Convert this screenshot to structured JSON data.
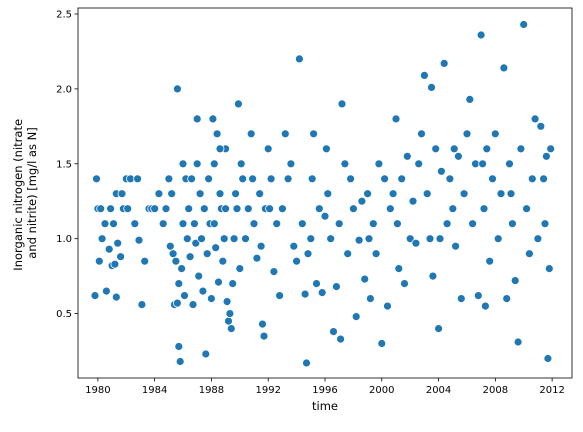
{
  "chart_data": {
    "type": "scatter",
    "title": "",
    "xlabel": "time",
    "ylabel": [
      "Inorganic nitrogen (nitrate",
      "and nitrite) [mg/l as N]"
    ],
    "xlim": [
      1978.6,
      2013.4
    ],
    "ylim": [
      0.07,
      2.54
    ],
    "xticks": [
      1980,
      1984,
      1988,
      1992,
      1996,
      2000,
      2004,
      2008,
      2012
    ],
    "yticks": [
      0.5,
      1.0,
      1.5,
      2.0,
      2.5
    ],
    "ytick_labels": [
      "0.5",
      "1.0",
      "1.5",
      "2.0",
      "2.5"
    ],
    "grid": false,
    "marker_color": "#1f77b4",
    "marker_edge_color": "#ffffff",
    "points": [
      [
        1979.8,
        0.62
      ],
      [
        1979.9,
        1.4
      ],
      [
        1980.0,
        1.2
      ],
      [
        1980.1,
        0.85
      ],
      [
        1980.2,
        1.2
      ],
      [
        1980.3,
        1.0
      ],
      [
        1980.5,
        1.1
      ],
      [
        1980.6,
        0.65
      ],
      [
        1980.8,
        0.93
      ],
      [
        1980.9,
        1.2
      ],
      [
        1981.0,
        0.82
      ],
      [
        1981.1,
        1.1
      ],
      [
        1981.2,
        0.83
      ],
      [
        1981.3,
        0.61
      ],
      [
        1981.3,
        1.3
      ],
      [
        1981.4,
        0.97
      ],
      [
        1981.6,
        0.88
      ],
      [
        1981.7,
        1.3
      ],
      [
        1981.8,
        1.2
      ],
      [
        1982.0,
        1.4
      ],
      [
        1982.1,
        1.2
      ],
      [
        1982.3,
        1.4
      ],
      [
        1982.6,
        1.1
      ],
      [
        1982.8,
        1.4
      ],
      [
        1982.9,
        0.99
      ],
      [
        1983.1,
        0.56
      ],
      [
        1983.3,
        0.85
      ],
      [
        1983.6,
        1.2
      ],
      [
        1983.8,
        1.2
      ],
      [
        1984.0,
        1.2
      ],
      [
        1984.3,
        1.3
      ],
      [
        1984.6,
        1.1
      ],
      [
        1984.8,
        1.2
      ],
      [
        1985.0,
        1.4
      ],
      [
        1985.1,
        0.95
      ],
      [
        1985.2,
        1.3
      ],
      [
        1985.3,
        0.9
      ],
      [
        1985.4,
        0.56
      ],
      [
        1985.5,
        0.85
      ],
      [
        1985.6,
        2.0
      ],
      [
        1985.7,
        0.28
      ],
      [
        1985.8,
        0.18
      ],
      [
        1985.6,
        0.57
      ],
      [
        1985.7,
        0.7
      ],
      [
        1985.9,
        0.8
      ],
      [
        1986.0,
        1.1
      ],
      [
        1986.0,
        1.5
      ],
      [
        1986.1,
        0.62
      ],
      [
        1986.2,
        1.4
      ],
      [
        1986.3,
        1.0
      ],
      [
        1986.4,
        1.2
      ],
      [
        1986.5,
        0.88
      ],
      [
        1986.6,
        1.4
      ],
      [
        1986.7,
        0.56
      ],
      [
        1986.8,
        1.1
      ],
      [
        1986.9,
        0.97
      ],
      [
        1987.0,
        1.8
      ],
      [
        1987.0,
        1.5
      ],
      [
        1987.1,
        0.75
      ],
      [
        1987.2,
        1.3
      ],
      [
        1987.3,
        1.0
      ],
      [
        1987.4,
        0.65
      ],
      [
        1987.5,
        1.2
      ],
      [
        1987.6,
        0.23
      ],
      [
        1987.7,
        0.9
      ],
      [
        1987.8,
        1.4
      ],
      [
        1987.9,
        1.1
      ],
      [
        1988.0,
        0.6
      ],
      [
        1988.1,
        1.8
      ],
      [
        1988.2,
        1.5
      ],
      [
        1988.3,
        0.94
      ],
      [
        1988.4,
        1.7
      ],
      [
        1988.5,
        0.71
      ],
      [
        1988.6,
        1.3
      ],
      [
        1988.7,
        1.2
      ],
      [
        1988.8,
        0.85
      ],
      [
        1988.9,
        1.0
      ],
      [
        1989.0,
        1.6
      ],
      [
        1989.1,
        0.58
      ],
      [
        1989.2,
        0.45
      ],
      [
        1989.3,
        0.5
      ],
      [
        1989.4,
        0.4
      ],
      [
        1989.5,
        0.7
      ],
      [
        1989.6,
        1.0
      ],
      [
        1989.7,
        1.3
      ],
      [
        1989.8,
        1.2
      ],
      [
        1989.9,
        1.9
      ],
      [
        1990.0,
        0.8
      ],
      [
        1990.2,
        1.4
      ],
      [
        1990.4,
        1.0
      ],
      [
        1990.6,
        1.2
      ],
      [
        1990.8,
        1.7
      ],
      [
        1991.0,
        1.1
      ],
      [
        1991.2,
        0.87
      ],
      [
        1991.4,
        1.3
      ],
      [
        1991.5,
        0.95
      ],
      [
        1991.6,
        0.43
      ],
      [
        1991.7,
        0.35
      ],
      [
        1991.8,
        1.2
      ],
      [
        1992.0,
        1.6
      ],
      [
        1992.2,
        1.4
      ],
      [
        1992.4,
        0.78
      ],
      [
        1992.6,
        1.1
      ],
      [
        1992.8,
        0.62
      ],
      [
        1993.0,
        1.2
      ],
      [
        1993.2,
        1.7
      ],
      [
        1993.4,
        1.4
      ],
      [
        1993.6,
        1.5
      ],
      [
        1993.8,
        0.95
      ],
      [
        1994.0,
        0.85
      ],
      [
        1994.2,
        2.2
      ],
      [
        1994.4,
        1.1
      ],
      [
        1994.6,
        0.63
      ],
      [
        1994.7,
        0.17
      ],
      [
        1994.8,
        0.9
      ],
      [
        1995.0,
        1.0
      ],
      [
        1995.2,
        1.7
      ],
      [
        1995.4,
        0.7
      ],
      [
        1995.6,
        1.2
      ],
      [
        1995.8,
        0.64
      ],
      [
        1996.0,
        1.15
      ],
      [
        1996.2,
        1.3
      ],
      [
        1996.4,
        1.0
      ],
      [
        1996.6,
        0.38
      ],
      [
        1996.8,
        0.68
      ],
      [
        1997.0,
        1.1
      ],
      [
        1997.1,
        0.33
      ],
      [
        1997.2,
        1.9
      ],
      [
        1997.4,
        1.5
      ],
      [
        1997.6,
        0.9
      ],
      [
        1997.8,
        1.4
      ],
      [
        1998.0,
        1.2
      ],
      [
        1998.2,
        0.48
      ],
      [
        1998.4,
        0.99
      ],
      [
        1998.6,
        1.25
      ],
      [
        1998.8,
        0.73
      ],
      [
        1999.0,
        1.3
      ],
      [
        1999.2,
        0.6
      ],
      [
        1999.4,
        1.1
      ],
      [
        1999.6,
        0.9
      ],
      [
        1999.8,
        1.5
      ],
      [
        2000.0,
        0.3
      ],
      [
        2000.2,
        1.4
      ],
      [
        2000.4,
        0.55
      ],
      [
        2000.6,
        1.2
      ],
      [
        2000.8,
        1.3
      ],
      [
        2001.0,
        1.8
      ],
      [
        2001.2,
        0.8
      ],
      [
        2001.4,
        1.4
      ],
      [
        2001.6,
        0.7
      ],
      [
        2001.8,
        1.55
      ],
      [
        2002.0,
        1.0
      ],
      [
        2002.2,
        1.25
      ],
      [
        2002.4,
        0.97
      ],
      [
        2002.6,
        1.5
      ],
      [
        2002.8,
        1.7
      ],
      [
        2003.0,
        2.09
      ],
      [
        2003.2,
        1.3
      ],
      [
        2003.4,
        1.0
      ],
      [
        2003.5,
        2.01
      ],
      [
        2003.6,
        0.75
      ],
      [
        2003.8,
        1.6
      ],
      [
        2004.0,
        0.4
      ],
      [
        2004.2,
        1.45
      ],
      [
        2004.4,
        2.17
      ],
      [
        2004.6,
        1.1
      ],
      [
        2004.8,
        1.4
      ],
      [
        2005.0,
        1.2
      ],
      [
        2005.2,
        0.95
      ],
      [
        2005.4,
        1.55
      ],
      [
        2005.6,
        0.6
      ],
      [
        2005.8,
        1.3
      ],
      [
        2006.0,
        1.7
      ],
      [
        2006.2,
        1.93
      ],
      [
        2006.4,
        1.1
      ],
      [
        2006.6,
        1.5
      ],
      [
        2006.8,
        0.62
      ],
      [
        2007.0,
        2.36
      ],
      [
        2007.2,
        1.2
      ],
      [
        2007.3,
        0.55
      ],
      [
        2007.4,
        1.6
      ],
      [
        2007.6,
        0.85
      ],
      [
        2007.8,
        1.4
      ],
      [
        2008.0,
        1.7
      ],
      [
        2008.2,
        1.0
      ],
      [
        2008.4,
        1.3
      ],
      [
        2008.6,
        2.14
      ],
      [
        2008.8,
        0.6
      ],
      [
        2009.0,
        1.5
      ],
      [
        2009.2,
        1.1
      ],
      [
        2009.4,
        0.72
      ],
      [
        2009.6,
        0.31
      ],
      [
        2009.8,
        1.6
      ],
      [
        2010.0,
        2.43
      ],
      [
        2010.2,
        1.2
      ],
      [
        2010.4,
        0.9
      ],
      [
        2010.6,
        1.4
      ],
      [
        2010.8,
        1.8
      ],
      [
        2011.0,
        1.0
      ],
      [
        2011.2,
        1.75
      ],
      [
        2011.4,
        1.4
      ],
      [
        2011.5,
        1.1
      ],
      [
        2011.6,
        1.55
      ],
      [
        2011.7,
        0.2
      ],
      [
        2011.8,
        0.8
      ],
      [
        2011.9,
        1.6
      ],
      [
        1988.2,
        1.1
      ],
      [
        1988.6,
        1.6
      ],
      [
        1989.0,
        1.2
      ],
      [
        1990.1,
        1.5
      ],
      [
        1990.9,
        1.4
      ],
      [
        1992.1,
        1.2
      ],
      [
        1995.1,
        1.4
      ],
      [
        1996.1,
        1.6
      ],
      [
        1999.1,
        1.0
      ],
      [
        2001.1,
        1.1
      ],
      [
        2004.1,
        1.0
      ],
      [
        2005.1,
        1.6
      ],
      [
        2007.1,
        1.5
      ],
      [
        2009.1,
        1.3
      ]
    ]
  }
}
